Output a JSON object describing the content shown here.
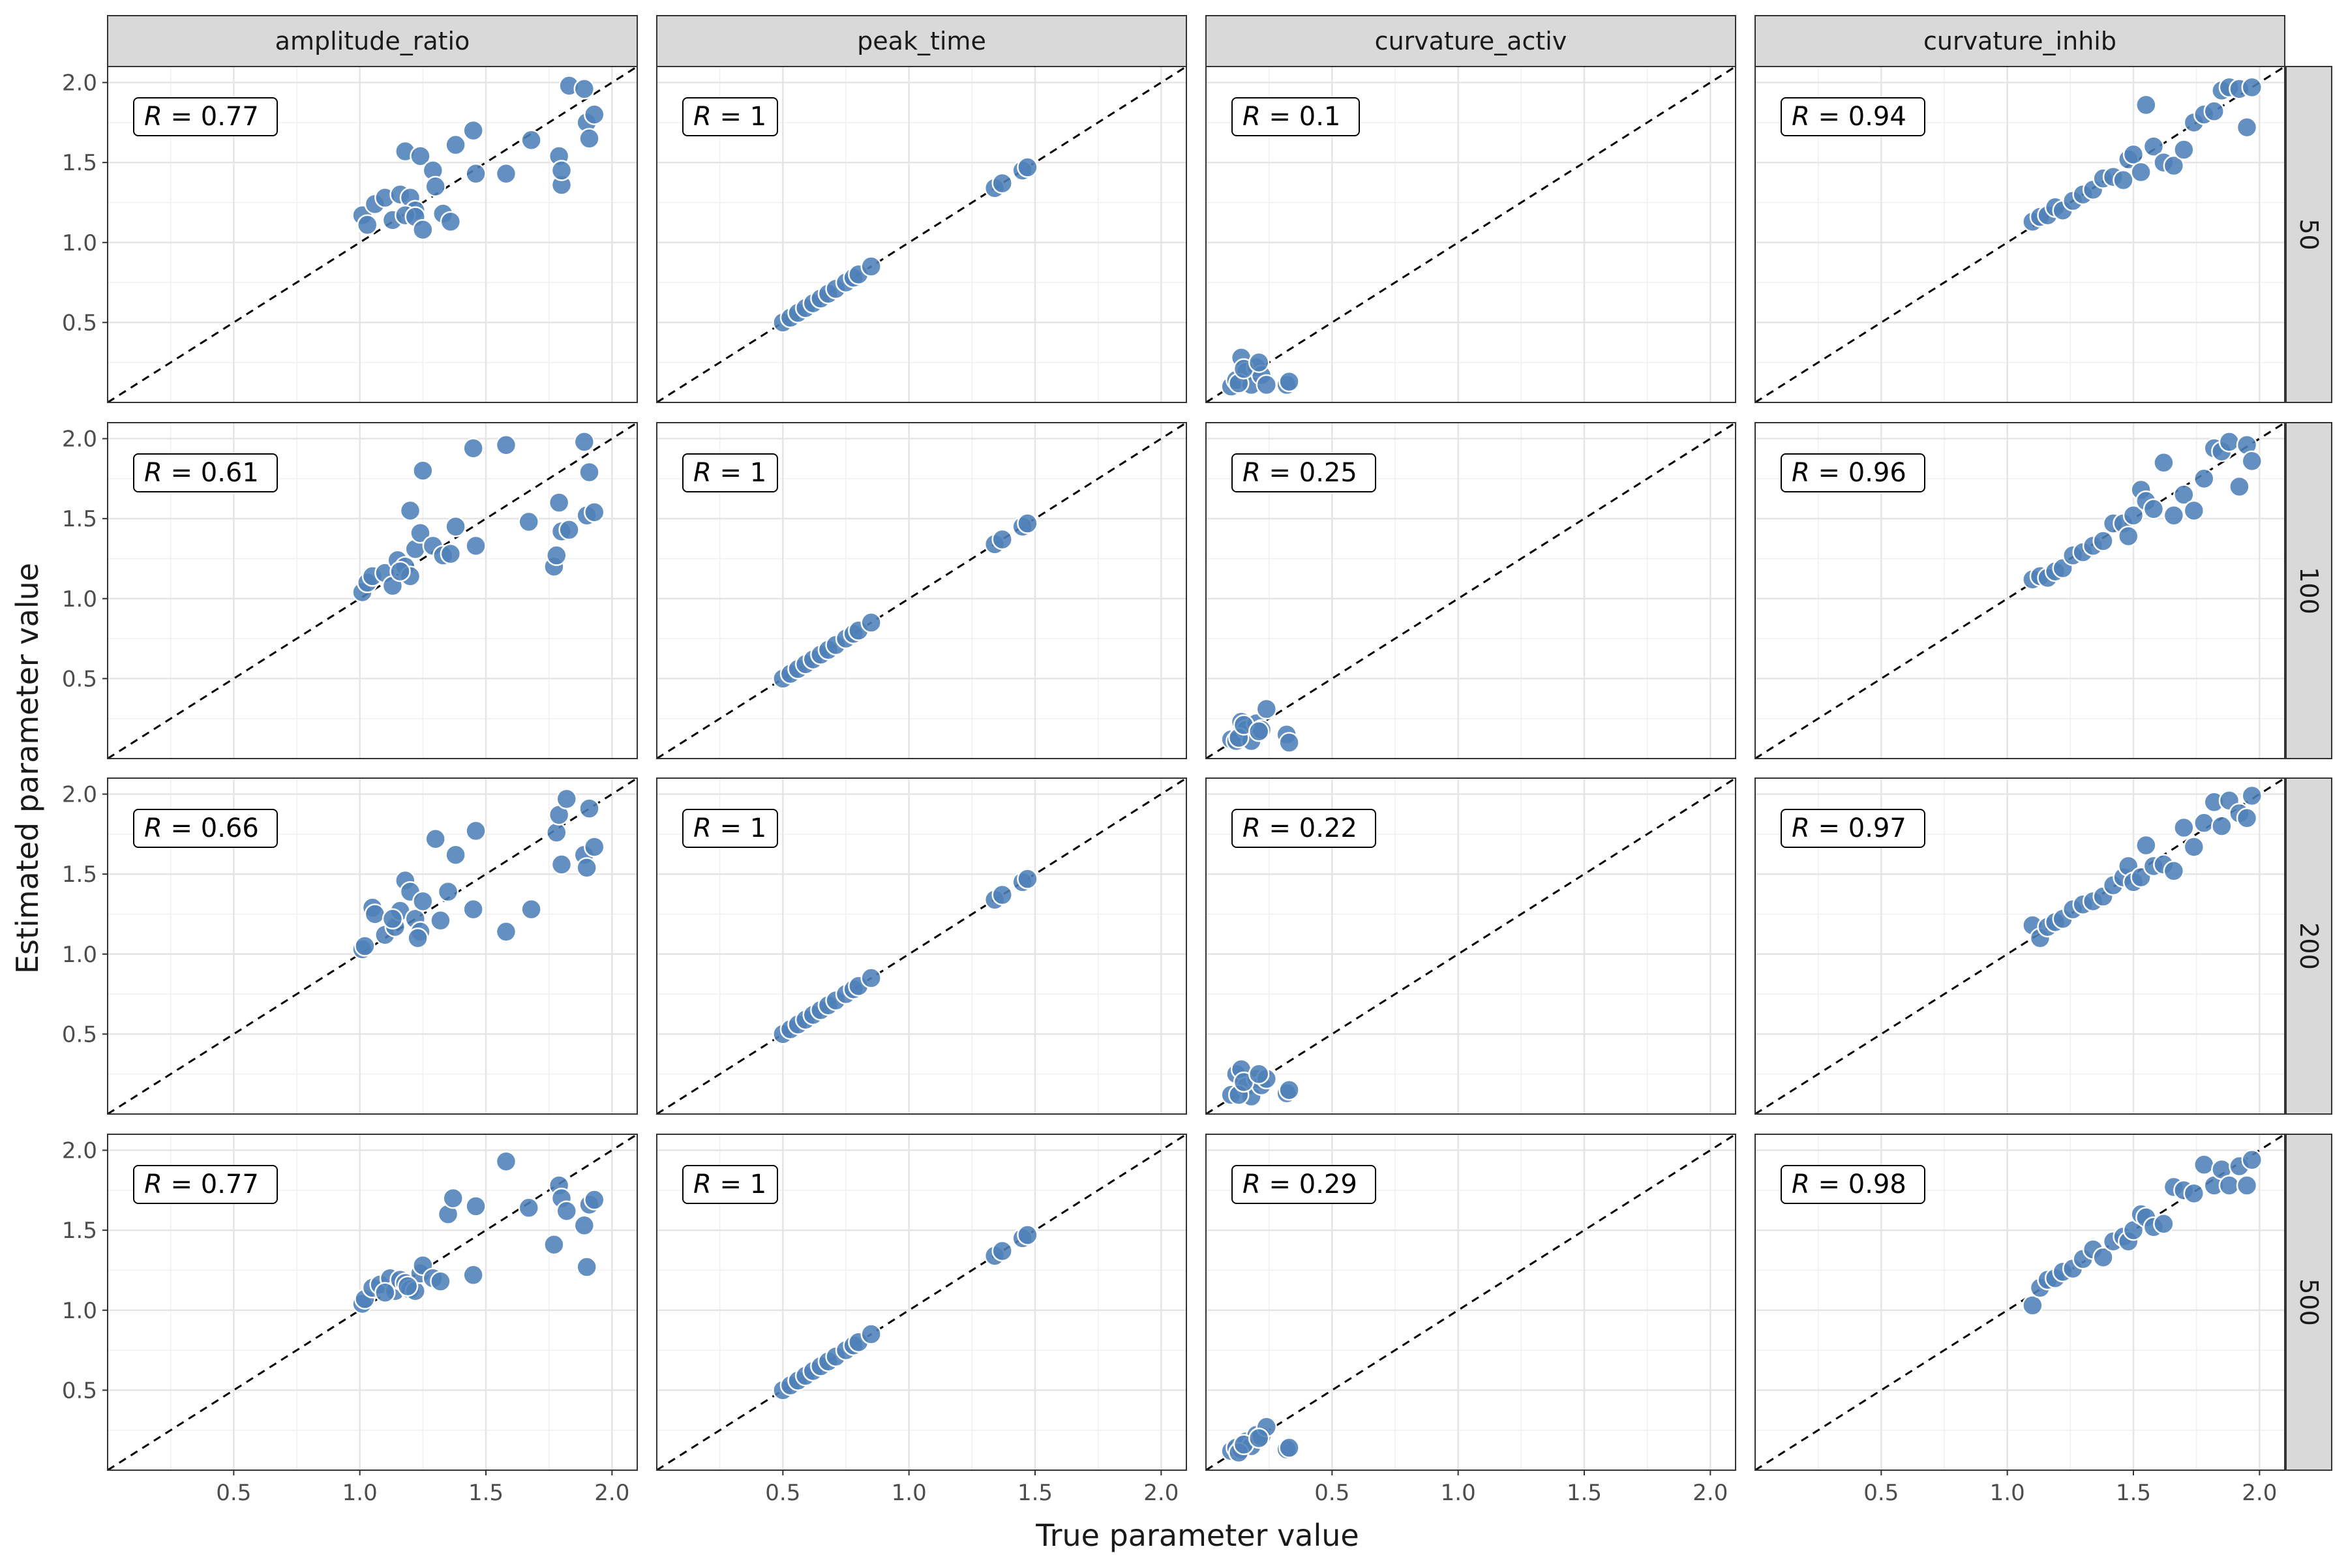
{
  "chart_data": {
    "type": "scatter",
    "facet_layout": "grid",
    "xlabel": "True parameter value",
    "ylabel": "Estimated parameter value",
    "columns": [
      "amplitude_ratio",
      "peak_time",
      "curvature_activ",
      "curvature_inhib"
    ],
    "rows": [
      "50",
      "100",
      "200",
      "500"
    ],
    "xlim": [
      0,
      2.1
    ],
    "ylim": [
      0,
      2.1
    ],
    "x_ticks": [
      "0.5",
      "1.0",
      "1.5",
      "2.0"
    ],
    "y_ticks": [
      "0.5",
      "1.0",
      "1.5",
      "2.0"
    ],
    "reference_line": "y = x (dashed)",
    "grid": true,
    "point_color": "#4F81B8",
    "strip_fill": "#D9D9D9",
    "panels": [
      {
        "row": "50",
        "column": "amplitude_ratio",
        "r_label": "0.77",
        "x": [
          1.01,
          1.03,
          1.06,
          1.1,
          1.13,
          1.16,
          1.18,
          1.2,
          1.22,
          1.24,
          1.18,
          1.22,
          1.29,
          1.33,
          1.36,
          1.25,
          1.3,
          1.38,
          1.46,
          1.45,
          1.58,
          1.68,
          1.79,
          1.8,
          1.8,
          1.83,
          1.89,
          1.9,
          1.91,
          1.93
        ],
        "y": [
          1.17,
          1.11,
          1.24,
          1.28,
          1.14,
          1.3,
          1.57,
          1.28,
          1.2,
          1.54,
          1.17,
          1.16,
          1.45,
          1.18,
          1.13,
          1.08,
          1.35,
          1.61,
          1.43,
          1.7,
          1.43,
          1.64,
          1.54,
          1.36,
          1.45,
          1.98,
          1.96,
          1.75,
          1.65,
          1.8
        ]
      },
      {
        "row": "50",
        "column": "peak_time",
        "r_label": "1",
        "x": [
          0.5,
          0.53,
          0.56,
          0.59,
          0.62,
          0.65,
          0.68,
          0.71,
          0.75,
          0.78,
          0.8,
          0.85,
          1.34,
          1.37,
          1.45,
          1.47
        ],
        "y": [
          0.5,
          0.53,
          0.56,
          0.59,
          0.62,
          0.65,
          0.68,
          0.71,
          0.75,
          0.78,
          0.8,
          0.85,
          1.34,
          1.37,
          1.45,
          1.47
        ]
      },
      {
        "row": "50",
        "column": "curvature_activ",
        "r_label": "0.1",
        "x": [
          0.1,
          0.12,
          0.14,
          0.16,
          0.18,
          0.2,
          0.22,
          0.24,
          0.13,
          0.15,
          0.21,
          0.32,
          0.33
        ],
        "y": [
          0.1,
          0.14,
          0.28,
          0.19,
          0.11,
          0.22,
          0.17,
          0.11,
          0.12,
          0.21,
          0.25,
          0.11,
          0.13
        ]
      },
      {
        "row": "50",
        "column": "curvature_inhib",
        "r_label": "0.94",
        "x": [
          1.1,
          1.13,
          1.16,
          1.19,
          1.22,
          1.26,
          1.3,
          1.34,
          1.38,
          1.42,
          1.46,
          1.48,
          1.5,
          1.53,
          1.55,
          1.58,
          1.62,
          1.66,
          1.7,
          1.74,
          1.78,
          1.82,
          1.85,
          1.88,
          1.92,
          1.95,
          1.97
        ],
        "y": [
          1.13,
          1.16,
          1.17,
          1.22,
          1.2,
          1.26,
          1.3,
          1.33,
          1.4,
          1.41,
          1.39,
          1.52,
          1.55,
          1.44,
          1.86,
          1.6,
          1.5,
          1.48,
          1.58,
          1.75,
          1.8,
          1.82,
          1.95,
          1.97,
          1.96,
          1.72,
          1.97
        ]
      },
      {
        "row": "100",
        "column": "amplitude_ratio",
        "r_label": "0.61",
        "x": [
          1.01,
          1.03,
          1.05,
          1.1,
          1.13,
          1.15,
          1.18,
          1.2,
          1.22,
          1.24,
          1.25,
          1.29,
          1.33,
          1.36,
          1.38,
          1.45,
          1.46,
          1.58,
          1.67,
          1.77,
          1.78,
          1.79,
          1.8,
          1.83,
          1.89,
          1.9,
          1.91,
          1.93,
          1.2,
          1.16
        ],
        "y": [
          1.04,
          1.1,
          1.14,
          1.16,
          1.08,
          1.24,
          1.2,
          1.55,
          1.31,
          1.41,
          1.8,
          1.33,
          1.27,
          1.28,
          1.45,
          1.94,
          1.33,
          1.96,
          1.48,
          1.2,
          1.27,
          1.6,
          1.42,
          1.43,
          1.98,
          1.52,
          1.79,
          1.54,
          1.14,
          1.17
        ]
      },
      {
        "row": "100",
        "column": "peak_time",
        "r_label": "1",
        "x": [
          0.5,
          0.53,
          0.56,
          0.59,
          0.62,
          0.65,
          0.68,
          0.71,
          0.75,
          0.78,
          0.8,
          0.85,
          1.34,
          1.37,
          1.45,
          1.47
        ],
        "y": [
          0.5,
          0.53,
          0.56,
          0.59,
          0.62,
          0.65,
          0.68,
          0.71,
          0.75,
          0.78,
          0.8,
          0.85,
          1.34,
          1.37,
          1.45,
          1.47
        ]
      },
      {
        "row": "100",
        "column": "curvature_activ",
        "r_label": "0.25",
        "x": [
          0.1,
          0.12,
          0.14,
          0.16,
          0.18,
          0.2,
          0.22,
          0.24,
          0.13,
          0.15,
          0.21,
          0.32,
          0.33
        ],
        "y": [
          0.12,
          0.11,
          0.23,
          0.18,
          0.11,
          0.22,
          0.18,
          0.31,
          0.13,
          0.21,
          0.17,
          0.15,
          0.1
        ]
      },
      {
        "row": "100",
        "column": "curvature_inhib",
        "r_label": "0.96",
        "x": [
          1.1,
          1.13,
          1.16,
          1.19,
          1.22,
          1.26,
          1.3,
          1.34,
          1.38,
          1.42,
          1.46,
          1.48,
          1.5,
          1.53,
          1.55,
          1.58,
          1.62,
          1.66,
          1.7,
          1.74,
          1.78,
          1.82,
          1.85,
          1.88,
          1.92,
          1.95,
          1.97
        ],
        "y": [
          1.12,
          1.14,
          1.13,
          1.17,
          1.19,
          1.27,
          1.29,
          1.33,
          1.36,
          1.47,
          1.47,
          1.39,
          1.52,
          1.68,
          1.61,
          1.56,
          1.85,
          1.52,
          1.65,
          1.55,
          1.75,
          1.94,
          1.92,
          1.98,
          1.7,
          1.96,
          1.86
        ]
      },
      {
        "row": "200",
        "column": "amplitude_ratio",
        "r_label": "0.66",
        "x": [
          1.01,
          1.02,
          1.05,
          1.06,
          1.1,
          1.14,
          1.16,
          1.18,
          1.2,
          1.22,
          1.24,
          1.25,
          1.3,
          1.32,
          1.35,
          1.38,
          1.45,
          1.46,
          1.58,
          1.68,
          1.78,
          1.79,
          1.8,
          1.82,
          1.89,
          1.9,
          1.91,
          1.93,
          1.13,
          1.23
        ],
        "y": [
          1.03,
          1.05,
          1.29,
          1.25,
          1.12,
          1.17,
          1.27,
          1.46,
          1.39,
          1.22,
          1.14,
          1.33,
          1.72,
          1.21,
          1.39,
          1.62,
          1.28,
          1.77,
          1.14,
          1.28,
          1.76,
          1.87,
          1.56,
          1.97,
          1.62,
          1.54,
          1.91,
          1.67,
          1.22,
          1.1
        ]
      },
      {
        "row": "200",
        "column": "peak_time",
        "r_label": "1",
        "x": [
          0.5,
          0.53,
          0.56,
          0.59,
          0.62,
          0.65,
          0.68,
          0.71,
          0.75,
          0.78,
          0.8,
          0.85,
          1.34,
          1.37,
          1.45,
          1.47
        ],
        "y": [
          0.5,
          0.53,
          0.56,
          0.59,
          0.62,
          0.65,
          0.68,
          0.71,
          0.75,
          0.78,
          0.8,
          0.85,
          1.34,
          1.37,
          1.45,
          1.47
        ]
      },
      {
        "row": "200",
        "column": "curvature_activ",
        "r_label": "0.22",
        "x": [
          0.1,
          0.12,
          0.14,
          0.16,
          0.18,
          0.2,
          0.22,
          0.24,
          0.13,
          0.15,
          0.21,
          0.32,
          0.33
        ],
        "y": [
          0.12,
          0.25,
          0.28,
          0.17,
          0.11,
          0.22,
          0.18,
          0.22,
          0.12,
          0.2,
          0.25,
          0.13,
          0.15
        ]
      },
      {
        "row": "200",
        "column": "curvature_inhib",
        "r_label": "0.97",
        "x": [
          1.1,
          1.13,
          1.16,
          1.19,
          1.22,
          1.26,
          1.3,
          1.34,
          1.38,
          1.42,
          1.46,
          1.48,
          1.5,
          1.53,
          1.55,
          1.58,
          1.62,
          1.66,
          1.7,
          1.74,
          1.78,
          1.82,
          1.85,
          1.88,
          1.92,
          1.95,
          1.97
        ],
        "y": [
          1.18,
          1.1,
          1.17,
          1.2,
          1.22,
          1.28,
          1.31,
          1.33,
          1.36,
          1.43,
          1.48,
          1.55,
          1.45,
          1.48,
          1.68,
          1.55,
          1.56,
          1.52,
          1.79,
          1.67,
          1.82,
          1.95,
          1.8,
          1.96,
          1.88,
          1.85,
          1.99
        ]
      },
      {
        "row": "500",
        "column": "amplitude_ratio",
        "r_label": "0.77",
        "x": [
          1.01,
          1.02,
          1.05,
          1.08,
          1.12,
          1.14,
          1.16,
          1.18,
          1.2,
          1.22,
          1.24,
          1.25,
          1.29,
          1.32,
          1.35,
          1.37,
          1.45,
          1.46,
          1.58,
          1.67,
          1.77,
          1.79,
          1.8,
          1.82,
          1.89,
          1.9,
          1.91,
          1.93,
          1.1,
          1.19
        ],
        "y": [
          1.04,
          1.07,
          1.14,
          1.16,
          1.2,
          1.12,
          1.19,
          1.17,
          1.13,
          1.12,
          1.23,
          1.28,
          1.2,
          1.18,
          1.6,
          1.7,
          1.22,
          1.65,
          1.93,
          1.64,
          1.41,
          1.78,
          1.7,
          1.62,
          1.53,
          1.27,
          1.66,
          1.69,
          1.11,
          1.15
        ]
      },
      {
        "row": "500",
        "column": "peak_time",
        "r_label": "1",
        "x": [
          0.5,
          0.53,
          0.56,
          0.59,
          0.62,
          0.65,
          0.68,
          0.71,
          0.75,
          0.78,
          0.8,
          0.85,
          1.34,
          1.37,
          1.45,
          1.47
        ],
        "y": [
          0.5,
          0.53,
          0.56,
          0.59,
          0.62,
          0.65,
          0.68,
          0.71,
          0.75,
          0.78,
          0.8,
          0.85,
          1.34,
          1.37,
          1.45,
          1.47
        ]
      },
      {
        "row": "500",
        "column": "curvature_activ",
        "r_label": "0.29",
        "x": [
          0.1,
          0.12,
          0.14,
          0.16,
          0.18,
          0.2,
          0.22,
          0.24,
          0.13,
          0.15,
          0.21,
          0.32,
          0.33
        ],
        "y": [
          0.12,
          0.14,
          0.13,
          0.18,
          0.15,
          0.22,
          0.21,
          0.27,
          0.11,
          0.16,
          0.2,
          0.13,
          0.14
        ]
      },
      {
        "row": "500",
        "column": "curvature_inhib",
        "r_label": "0.98",
        "x": [
          1.1,
          1.13,
          1.16,
          1.19,
          1.22,
          1.26,
          1.3,
          1.34,
          1.38,
          1.42,
          1.46,
          1.48,
          1.5,
          1.53,
          1.55,
          1.58,
          1.62,
          1.66,
          1.7,
          1.74,
          1.78,
          1.82,
          1.85,
          1.88,
          1.92,
          1.95,
          1.97
        ],
        "y": [
          1.03,
          1.14,
          1.19,
          1.2,
          1.24,
          1.26,
          1.32,
          1.38,
          1.33,
          1.43,
          1.46,
          1.43,
          1.5,
          1.6,
          1.58,
          1.52,
          1.54,
          1.77,
          1.75,
          1.73,
          1.91,
          1.78,
          1.88,
          1.78,
          1.9,
          1.78,
          1.94
        ]
      }
    ]
  }
}
